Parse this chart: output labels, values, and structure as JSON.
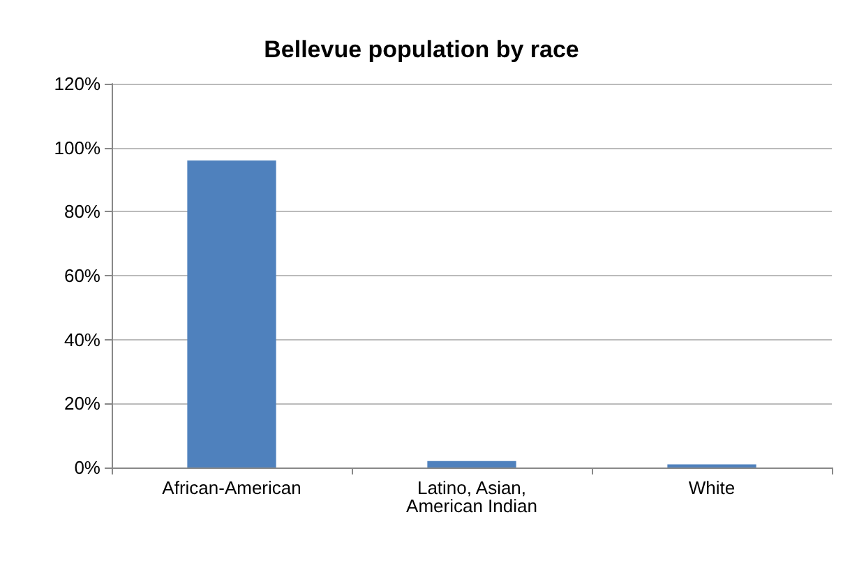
{
  "chart_data": {
    "type": "bar",
    "title": "Bellevue population by race",
    "categories": [
      "African-American",
      "Latino, Asian,\nAmerican Indian",
      "White"
    ],
    "values": [
      96,
      2,
      1
    ],
    "color": "#4f81bd",
    "ylim": [
      0,
      120
    ],
    "yticks": [
      {
        "value": 0,
        "label": "0%"
      },
      {
        "value": 20,
        "label": "20%"
      },
      {
        "value": 40,
        "label": "40%"
      },
      {
        "value": 60,
        "label": "60%"
      },
      {
        "value": 80,
        "label": "80%"
      },
      {
        "value": 100,
        "label": "100%"
      },
      {
        "value": 120,
        "label": "120%"
      }
    ],
    "grid": "y"
  }
}
